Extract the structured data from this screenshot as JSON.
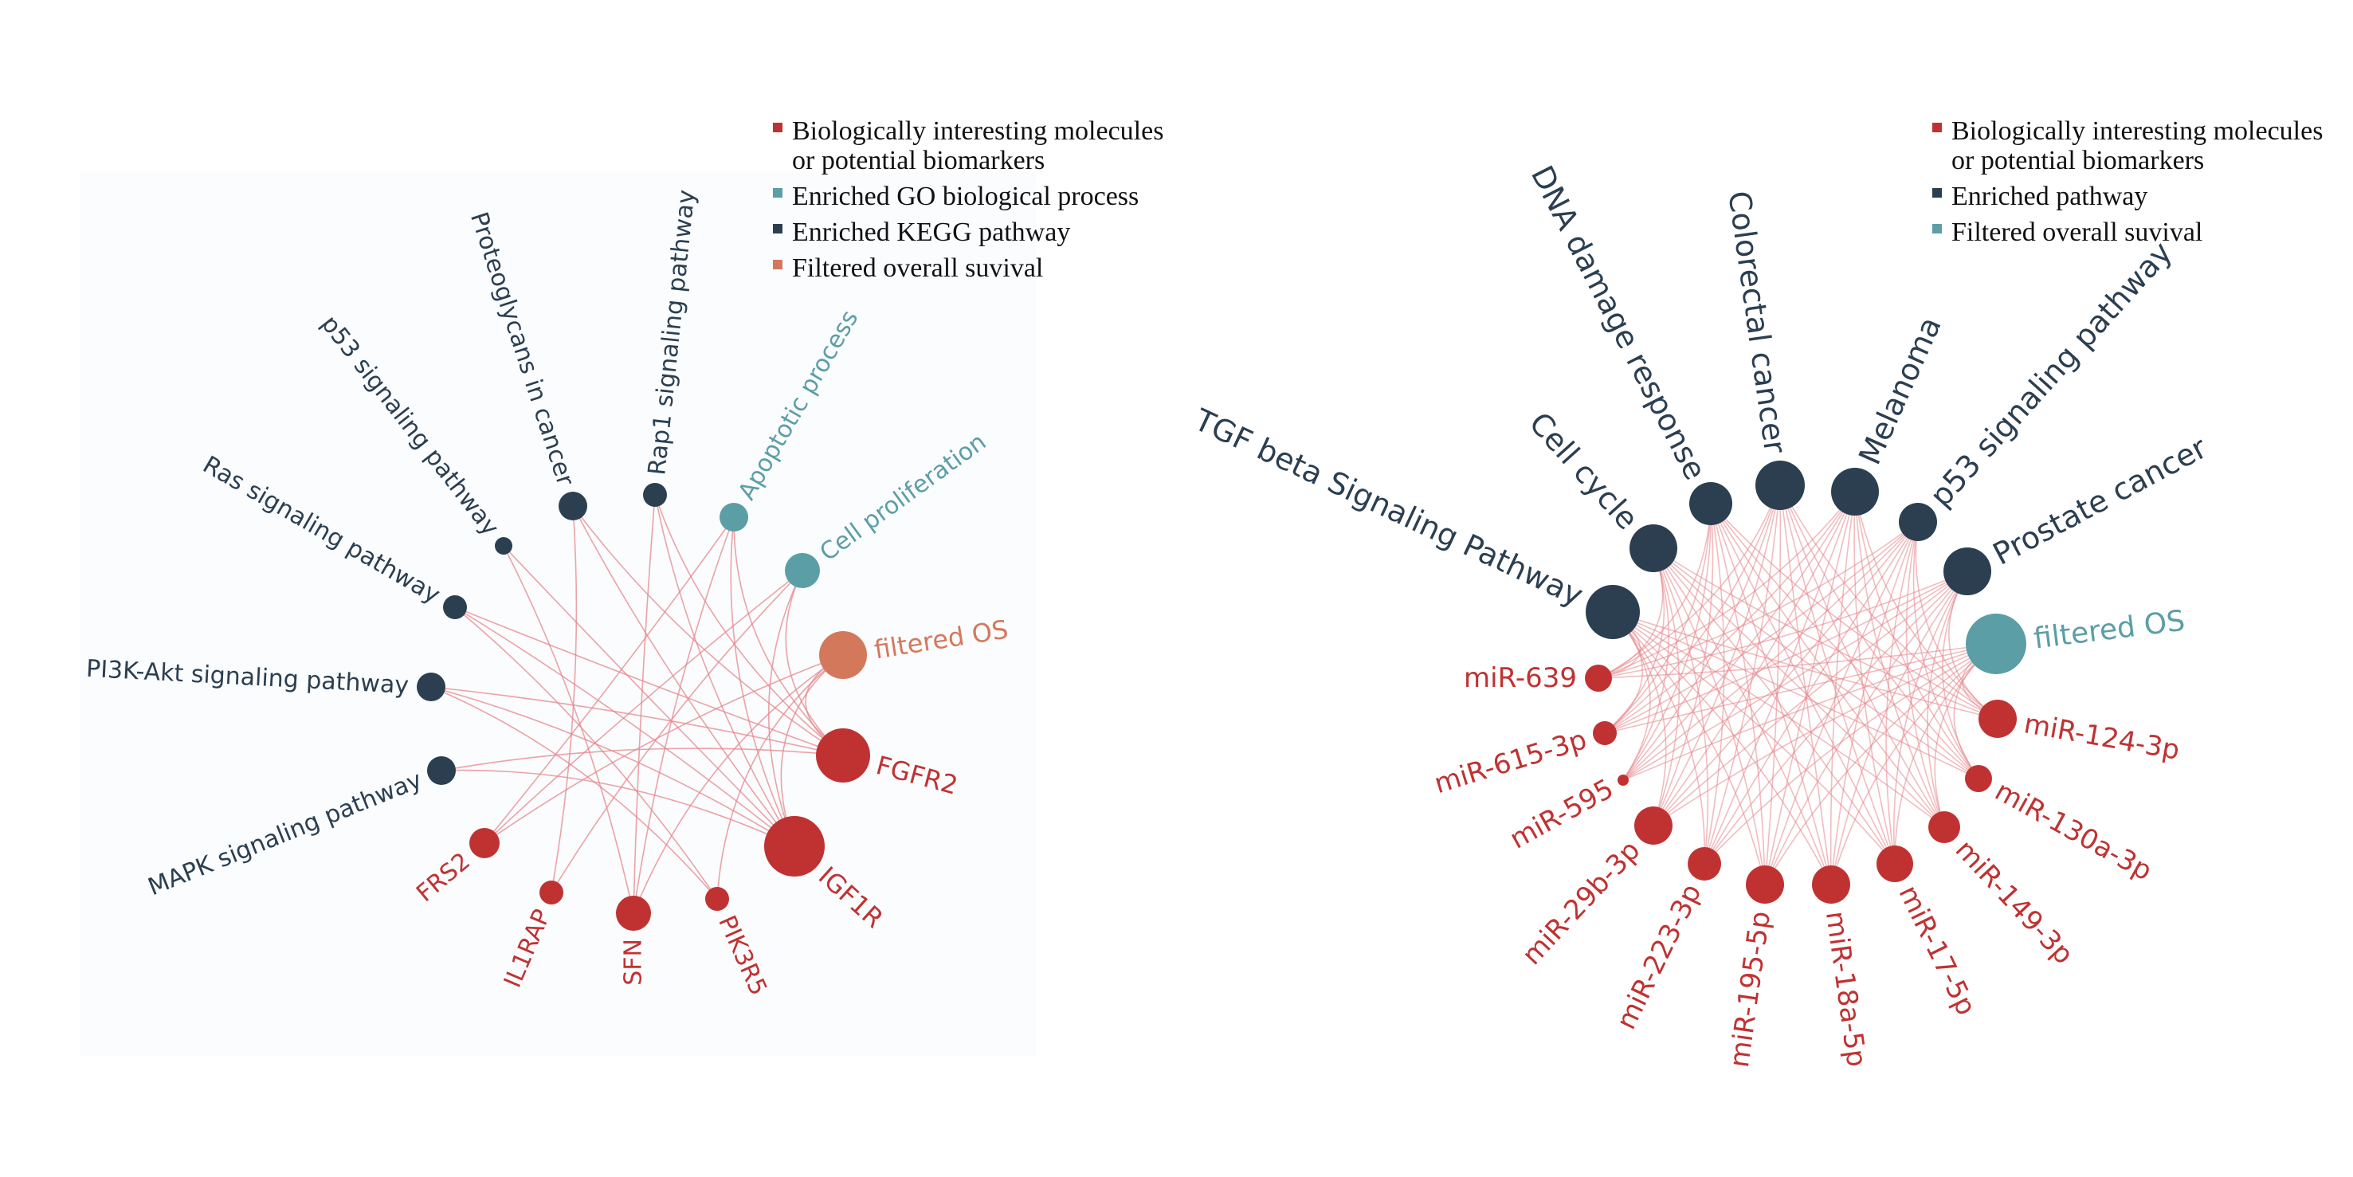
{
  "colors": {
    "red": "#c03232",
    "navy": "#2b3f51",
    "teal": "#5b9ea6",
    "orange": "#d4785c",
    "edge": "#e5858a",
    "panel_bg": "#fafcfe"
  },
  "left_network": {
    "legend": [
      {
        "color": "#c03232",
        "lines": [
          "Biologically interesting molecules",
          "or potential biomarkers"
        ]
      },
      {
        "color": "#5b9ea6",
        "lines": [
          "Enriched GO biological process"
        ]
      },
      {
        "color": "#2b3f51",
        "lines": [
          "Enriched KEGG pathway"
        ]
      },
      {
        "color": "#d4785c",
        "lines": [
          "Filtered overall suvival"
        ]
      }
    ],
    "nodes": [
      {
        "id": "mapk",
        "label": "MAPK signaling pathway",
        "category": "kegg"
      },
      {
        "id": "pi3k",
        "label": "PI3K-Akt signaling pathway",
        "category": "kegg"
      },
      {
        "id": "ras",
        "label": "Ras signaling pathway",
        "category": "kegg"
      },
      {
        "id": "p53",
        "label": "p53 signaling pathway",
        "category": "kegg"
      },
      {
        "id": "proteo",
        "label": "Proteoglycans in cancer",
        "category": "kegg"
      },
      {
        "id": "rap1",
        "label": "Rap1 signaling pathway",
        "category": "kegg"
      },
      {
        "id": "apop",
        "label": "Apoptotic process",
        "category": "go"
      },
      {
        "id": "prolif",
        "label": "Cell proliferation",
        "category": "go"
      },
      {
        "id": "fos",
        "label": "filtered OS",
        "category": "os"
      },
      {
        "id": "fgfr2",
        "label": "FGFR2",
        "category": "molecule"
      },
      {
        "id": "igf1r",
        "label": "IGF1R",
        "category": "molecule"
      },
      {
        "id": "pik3r5",
        "label": "PIK3R5",
        "category": "molecule"
      },
      {
        "id": "sfn",
        "label": "SFN",
        "category": "molecule"
      },
      {
        "id": "il1rap",
        "label": "IL1RAP",
        "category": "molecule"
      },
      {
        "id": "frs2",
        "label": "FRS2",
        "category": "molecule"
      }
    ],
    "edges": [
      [
        "fgfr2",
        "mapk"
      ],
      [
        "fgfr2",
        "pi3k"
      ],
      [
        "fgfr2",
        "ras"
      ],
      [
        "fgfr2",
        "proteo"
      ],
      [
        "fgfr2",
        "rap1"
      ],
      [
        "fgfr2",
        "apop"
      ],
      [
        "fgfr2",
        "prolif"
      ],
      [
        "fgfr2",
        "fos"
      ],
      [
        "igf1r",
        "mapk"
      ],
      [
        "igf1r",
        "pi3k"
      ],
      [
        "igf1r",
        "ras"
      ],
      [
        "igf1r",
        "p53"
      ],
      [
        "igf1r",
        "proteo"
      ],
      [
        "igf1r",
        "rap1"
      ],
      [
        "igf1r",
        "apop"
      ],
      [
        "igf1r",
        "prolif"
      ],
      [
        "igf1r",
        "fos"
      ],
      [
        "frs2",
        "prolif"
      ],
      [
        "frs2",
        "fos"
      ],
      [
        "frs2",
        "apop"
      ],
      [
        "il1rap",
        "proteo"
      ],
      [
        "il1rap",
        "prolif"
      ],
      [
        "sfn",
        "p53"
      ],
      [
        "sfn",
        "apop"
      ],
      [
        "sfn",
        "fos"
      ],
      [
        "sfn",
        "rap1"
      ],
      [
        "pik3r5",
        "pi3k"
      ],
      [
        "pik3r5",
        "ras"
      ],
      [
        "pik3r5",
        "fos"
      ]
    ]
  },
  "right_network": {
    "legend": [
      {
        "color": "#c03232",
        "lines": [
          "Biologically interesting molecules",
          "or potential biomarkers"
        ]
      },
      {
        "color": "#2b3f51",
        "lines": [
          "Enriched pathway"
        ]
      },
      {
        "color": "#5b9ea6",
        "lines": [
          "Filtered overall suvival"
        ]
      }
    ],
    "nodes": [
      {
        "id": "tgf",
        "label": "TGF beta Signaling Pathway",
        "category": "pathway"
      },
      {
        "id": "cc",
        "label": "Cell cycle",
        "category": "pathway"
      },
      {
        "id": "dna",
        "label": "DNA damage response",
        "category": "pathway"
      },
      {
        "id": "crc",
        "label": "Colorectal cancer",
        "category": "pathway"
      },
      {
        "id": "mel",
        "label": "Melanoma",
        "category": "pathway"
      },
      {
        "id": "p53",
        "label": "p53 signaling pathway",
        "category": "pathway"
      },
      {
        "id": "pc",
        "label": "Prostate cancer",
        "category": "pathway"
      },
      {
        "id": "fos",
        "label": "filtered OS",
        "category": "os"
      },
      {
        "id": "m124",
        "label": "miR-124-3p",
        "category": "molecule"
      },
      {
        "id": "m130a",
        "label": "miR-130a-3p",
        "category": "molecule"
      },
      {
        "id": "m149",
        "label": "miR-149-3p",
        "category": "molecule"
      },
      {
        "id": "m17",
        "label": "miR-17-5p",
        "category": "molecule"
      },
      {
        "id": "m18a",
        "label": "miR-18a-5p",
        "category": "molecule"
      },
      {
        "id": "m195",
        "label": "miR-195-5p",
        "category": "molecule"
      },
      {
        "id": "m223",
        "label": "miR-223-3p",
        "category": "molecule"
      },
      {
        "id": "m29b",
        "label": "miR-29b-3p",
        "category": "molecule"
      },
      {
        "id": "m595",
        "label": "miR-595",
        "category": "molecule"
      },
      {
        "id": "m615",
        "label": "miR-615-3p",
        "category": "molecule"
      },
      {
        "id": "m639",
        "label": "miR-639",
        "category": "molecule"
      }
    ],
    "edge_rule": "each miRNA node is linked to every pathway node and to filtered OS"
  }
}
